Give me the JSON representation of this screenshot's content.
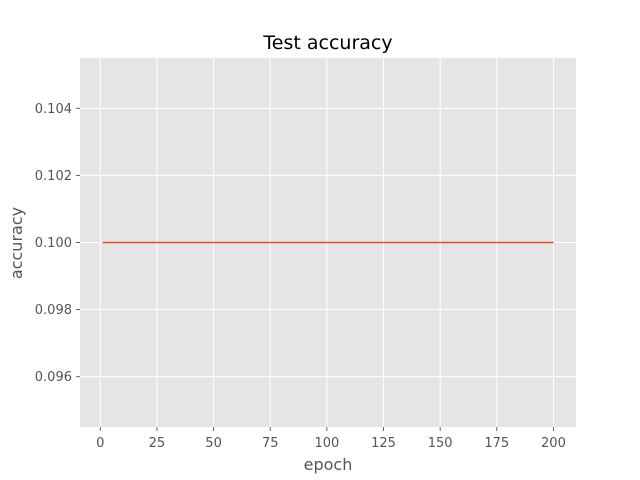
{
  "chart_data": {
    "type": "line",
    "title": "Test accuracy",
    "xlabel": "epoch",
    "ylabel": "accuracy",
    "xlim": [
      -8.95,
      209.95
    ],
    "ylim": [
      0.0945,
      0.1055
    ],
    "xticks": [
      0,
      25,
      50,
      75,
      100,
      125,
      150,
      175,
      200
    ],
    "xtick_labels": [
      "0",
      "25",
      "50",
      "75",
      "100",
      "125",
      "150",
      "175",
      "200"
    ],
    "yticks": [
      0.096,
      0.098,
      0.1,
      0.102,
      0.104
    ],
    "ytick_labels": [
      "0.096",
      "0.098",
      "0.100",
      "0.102",
      "0.104"
    ],
    "grid": true,
    "style": "ggplot",
    "series": [
      {
        "color": "#E24A33",
        "x": [
          1,
          200
        ],
        "y": [
          0.1,
          0.1
        ]
      }
    ]
  }
}
